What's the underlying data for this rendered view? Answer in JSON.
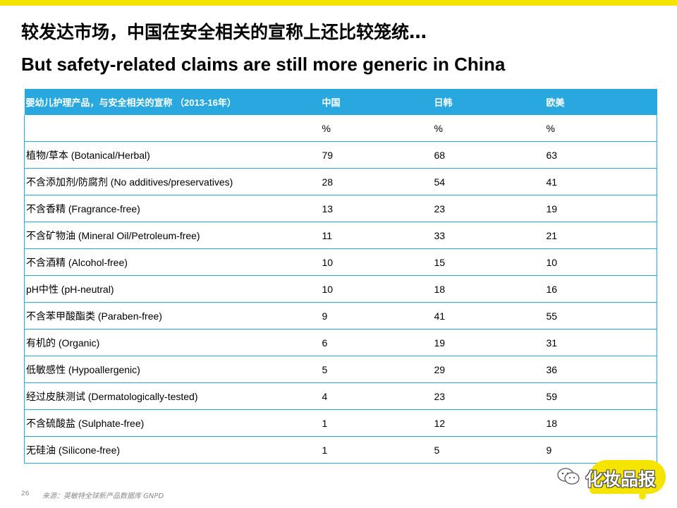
{
  "title": {
    "cn": "较发达市场，中国在安全相关的宣称上还比较笼统…",
    "en": "But safety-related claims are still more generic in China"
  },
  "table": {
    "headers": [
      "婴幼儿护理产品，与安全相关的宣称 （2013-16年）",
      "中国",
      "日韩",
      "欧美"
    ],
    "unit_row": [
      "",
      "%",
      "%",
      "%"
    ],
    "rows": [
      [
        "植物/草本 (Botanical/Herbal)",
        "79",
        "68",
        "63"
      ],
      [
        "不含添加剂/防腐剂 (No additives/preservatives)",
        "28",
        "54",
        "41"
      ],
      [
        "不含香精 (Fragrance-free)",
        "13",
        "23",
        "19"
      ],
      [
        "不含矿物油  (Mineral Oil/Petroleum-free)",
        "11",
        "33",
        "21"
      ],
      [
        "不含酒精 (Alcohol-free)",
        "10",
        "15",
        "10"
      ],
      [
        "pH中性 (pH-neutral)",
        "10",
        "18",
        "16"
      ],
      [
        "不含苯甲酸酯类 (Paraben-free)",
        "9",
        "41",
        "55"
      ],
      [
        "有机的 (Organic)",
        "6",
        "19",
        "31"
      ],
      [
        "低敏感性 (Hypoallergenic)",
        "5",
        "29",
        "36"
      ],
      [
        "经过皮肤测试 (Dermatologically-tested)",
        "4",
        "23",
        "59"
      ],
      [
        "不含硫酸盐 (Sulphate-free)",
        "1",
        "12",
        "18"
      ],
      [
        "无硅油 (Silicone-free)",
        "1",
        "5",
        "9"
      ]
    ]
  },
  "footer": {
    "page_number": "26",
    "source": "来源：英敏特全球新产品数据库 GNPD"
  },
  "watermark": {
    "text": "化妆品报",
    "icon": "wechat-icon"
  },
  "colors": {
    "accent_yellow": "#f5e400",
    "header_blue": "#29a8df",
    "footer_gray": "#8a8a8a"
  }
}
